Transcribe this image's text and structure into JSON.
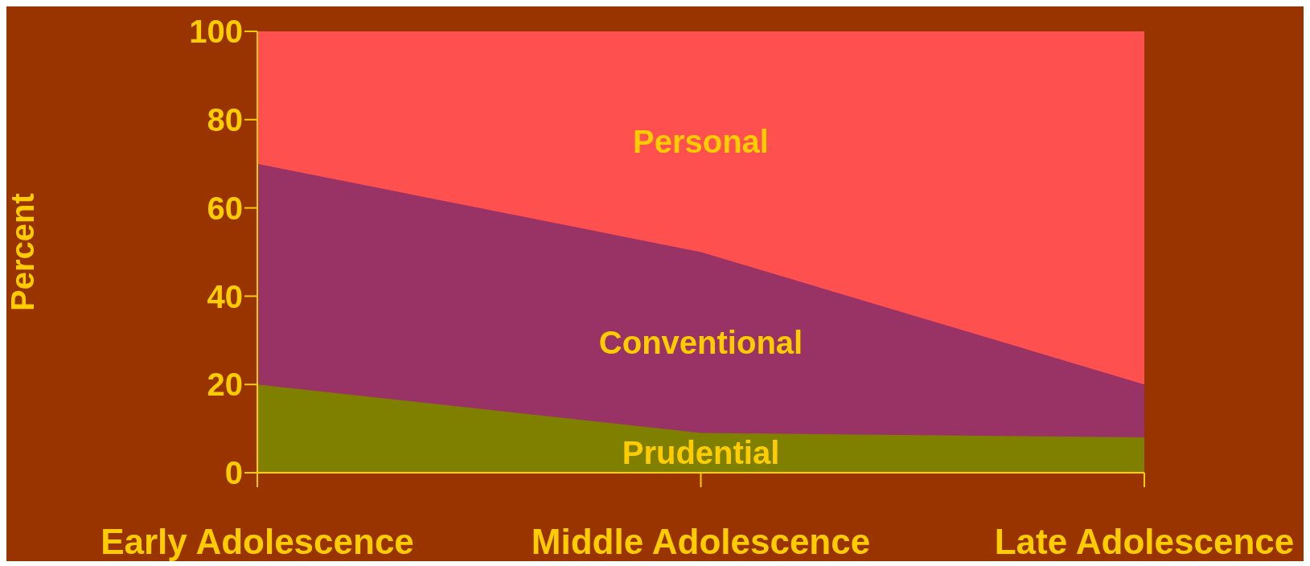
{
  "chart_data": {
    "type": "area",
    "stacked": true,
    "ylabel": "Percent",
    "categories": [
      "Early Adolescence",
      "Middle Adolescence",
      "Late Adolescence"
    ],
    "series": [
      {
        "name": "Prudential",
        "color": "#808000",
        "values": [
          20,
          9,
          8
        ]
      },
      {
        "name": "Conventional",
        "color": "#993366",
        "values": [
          50,
          41,
          12
        ]
      },
      {
        "name": "Personal",
        "color": "#ff5050",
        "values": [
          30,
          50,
          80
        ]
      }
    ],
    "ylim": [
      0,
      100
    ],
    "yticks": [
      0,
      20,
      40,
      60,
      80,
      100
    ],
    "grid": false
  }
}
